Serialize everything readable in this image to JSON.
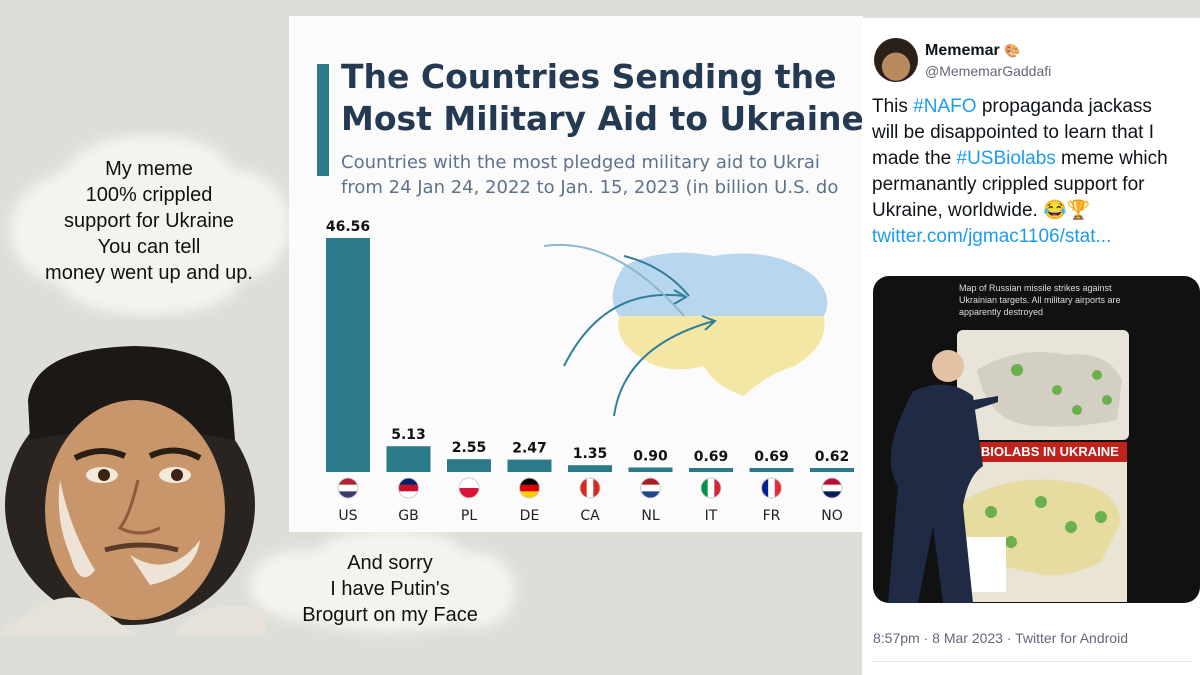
{
  "bubble_top": {
    "lines": [
      "My meme",
      "100% crippled",
      "support for Ukraine",
      "You can tell",
      "money went up and up."
    ]
  },
  "bubble_bottom": {
    "lines": [
      "And sorry",
      "I have Putin's",
      "Brogurt on my Face"
    ]
  },
  "chart_data": {
    "type": "bar",
    "title_lines": [
      "The Countries Sending the",
      "Most Military Aid to Ukraine"
    ],
    "subtitle_lines": [
      "Countries with the most pledged military aid to Ukrai",
      "from 24 Jan 24, 2022 to Jan. 15, 2023  (in billion U.S. do"
    ],
    "categories": [
      "US",
      "GB",
      "PL",
      "DE",
      "CA",
      "NL",
      "IT",
      "FR",
      "NO"
    ],
    "values": [
      46.56,
      5.13,
      2.55,
      2.47,
      1.35,
      0.9,
      0.69,
      0.69,
      0.62
    ],
    "value_labels": [
      "46.56",
      "5.13",
      "2.55",
      "2.47",
      "1.35",
      "0.90",
      "0.69",
      "0.69",
      "0.62"
    ],
    "ylim": [
      0,
      46.56
    ],
    "bar_color": "#2a7a8a"
  },
  "tweet": {
    "name": "Mememar",
    "name_emoji": "🎨",
    "handle": "@MememarGaddafi",
    "body": {
      "l1a": "This ",
      "l1tag": "#NAFO",
      "l1b": " propaganda jackass",
      "l2": "will be disappointed to learn that I",
      "l3a": "made the ",
      "l3tag": "#USBiolabs",
      "l3b": " meme which",
      "l4": "permanantly crippled support for",
      "l5": "Ukraine, worldwide. 😂🏆",
      "link": "twitter.com/jgmac1106/stat..."
    },
    "media": {
      "top_caption": "Map of Russian missile strikes against Ukrainian targets. All military airports are apparently destroyed",
      "bottom_banner": "US BIOLABS IN UKRAINE"
    },
    "meta": "8:57pm · 8 Mar 2023 · Twitter for Android"
  },
  "colors": {
    "accent_blue": "#1d9bf0",
    "chart_title": "#233a52",
    "background": "#deded8"
  }
}
